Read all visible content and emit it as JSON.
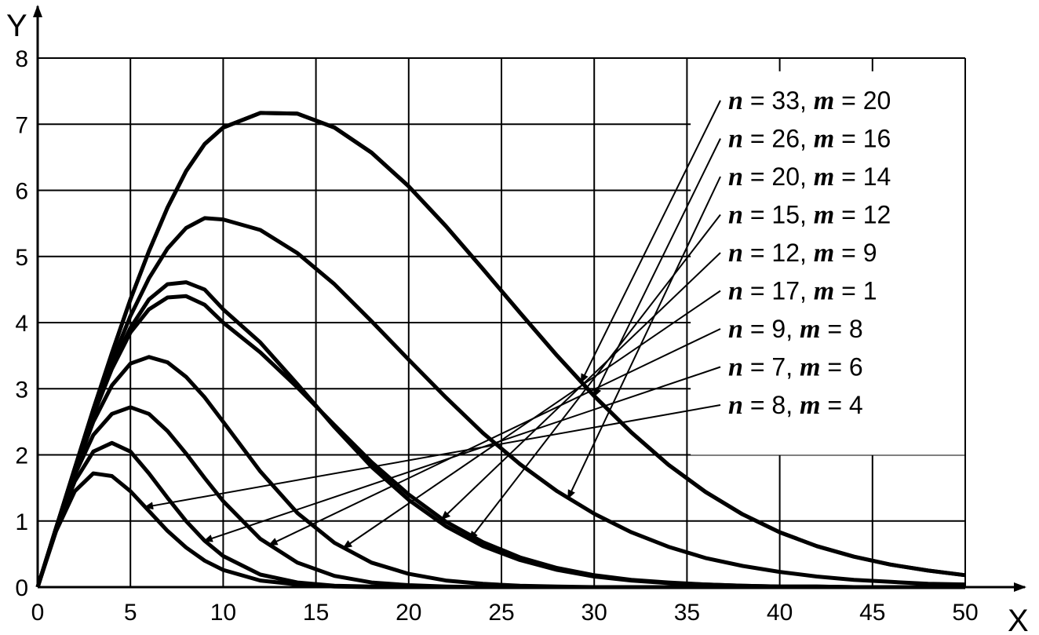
{
  "chart_data": {
    "type": "line",
    "title": "",
    "xlabel": "X",
    "ylabel": "Y",
    "xlim": [
      0,
      50
    ],
    "ylim": [
      0,
      8
    ],
    "xticks": [
      0,
      5,
      10,
      15,
      20,
      25,
      30,
      35,
      40,
      45,
      50
    ],
    "yticks": [
      0,
      1,
      2,
      3,
      4,
      5,
      6,
      7,
      8
    ],
    "grid": true,
    "legend_position": "right",
    "line_color": "#000000",
    "x": [
      0,
      1,
      2,
      3,
      4,
      5,
      6,
      7,
      8,
      9,
      10,
      12,
      14,
      16,
      18,
      20,
      22,
      24,
      26,
      28,
      30,
      32,
      34,
      36,
      38,
      40,
      42,
      44,
      46,
      48,
      50
    ],
    "series": [
      {
        "name": "n = 33, m = 20",
        "values": [
          0,
          0.9,
          1.8,
          2.69,
          3.54,
          4.35,
          5.08,
          5.74,
          6.29,
          6.7,
          6.95,
          7.17,
          7.16,
          6.95,
          6.57,
          6.06,
          5.46,
          4.81,
          4.15,
          3.5,
          2.89,
          2.34,
          1.85,
          1.44,
          1.1,
          0.83,
          0.62,
          0.46,
          0.34,
          0.25,
          0.18
        ],
        "arrow_x": 29.3
      },
      {
        "name": "n = 26, m = 16",
        "values": [
          0,
          0.9,
          1.8,
          2.69,
          3.54,
          4.35,
          5.08,
          5.74,
          6.29,
          6.7,
          6.95,
          7.17,
          7.16,
          6.95,
          6.57,
          6.06,
          5.46,
          4.81,
          4.15,
          3.5,
          2.89,
          2.34,
          1.85,
          1.44,
          1.1,
          0.83,
          0.62,
          0.46,
          0.34,
          0.25,
          0.18
        ],
        "arrow_x": 30.0
      },
      {
        "name": "n = 20, m = 14",
        "values": [
          0,
          0.9,
          1.78,
          2.62,
          3.41,
          4.1,
          4.67,
          5.12,
          5.43,
          5.58,
          5.56,
          5.4,
          5.05,
          4.58,
          4.02,
          3.44,
          2.87,
          2.33,
          1.86,
          1.45,
          1.11,
          0.83,
          0.61,
          0.44,
          0.32,
          0.23,
          0.16,
          0.11,
          0.08,
          0.05,
          0.04
        ],
        "arrow_x": 28.6
      },
      {
        "name": "n = 15, m = 12",
        "values": [
          0,
          0.9,
          1.78,
          2.6,
          3.33,
          3.92,
          4.35,
          4.58,
          4.61,
          4.5,
          4.2,
          3.7,
          3.07,
          2.42,
          1.82,
          1.32,
          0.92,
          0.62,
          0.41,
          0.26,
          0.16,
          0.1,
          0.06,
          0.04,
          0.02,
          0.01,
          0.01,
          0,
          0,
          0,
          0
        ],
        "arrow_x": 23.3
      },
      {
        "name": "n = 12, m = 9",
        "values": [
          0,
          0.9,
          1.78,
          2.6,
          3.3,
          3.85,
          4.2,
          4.38,
          4.4,
          4.27,
          4.0,
          3.55,
          3.02,
          2.45,
          1.89,
          1.4,
          0.99,
          0.68,
          0.45,
          0.29,
          0.18,
          0.11,
          0.07,
          0.04,
          0.02,
          0.01,
          0.01,
          0,
          0,
          0,
          0
        ],
        "arrow_x": 21.8
      },
      {
        "name": "n = 17, m = 1",
        "values": [
          0,
          0.9,
          1.75,
          2.5,
          3.05,
          3.38,
          3.48,
          3.4,
          3.18,
          2.87,
          2.5,
          1.75,
          1.12,
          0.67,
          0.37,
          0.2,
          0.1,
          0.05,
          0.02,
          0.01,
          0,
          0,
          0,
          0,
          0,
          0,
          0,
          0,
          0,
          0,
          0
        ],
        "arrow_x": 16.5
      },
      {
        "name": "n = 9, m = 8",
        "values": [
          0,
          0.9,
          1.7,
          2.3,
          2.62,
          2.72,
          2.62,
          2.36,
          2.02,
          1.65,
          1.3,
          0.73,
          0.37,
          0.17,
          0.07,
          0.03,
          0.01,
          0,
          0,
          0,
          0,
          0,
          0,
          0,
          0,
          0,
          0,
          0,
          0,
          0,
          0
        ],
        "arrow_x": 12.5
      },
      {
        "name": "n = 7, m = 6",
        "values": [
          0,
          0.88,
          1.6,
          2.05,
          2.18,
          2.05,
          1.72,
          1.35,
          1.0,
          0.7,
          0.47,
          0.19,
          0.07,
          0.02,
          0.01,
          0,
          0,
          0,
          0,
          0,
          0,
          0,
          0,
          0,
          0,
          0,
          0,
          0,
          0,
          0,
          0
        ],
        "arrow_x": 9.0
      },
      {
        "name": "n = 8, m = 4",
        "values": [
          0,
          0.85,
          1.45,
          1.72,
          1.68,
          1.45,
          1.15,
          0.85,
          0.6,
          0.4,
          0.26,
          0.1,
          0.04,
          0.01,
          0,
          0,
          0,
          0,
          0,
          0,
          0,
          0,
          0,
          0,
          0,
          0,
          0,
          0,
          0,
          0,
          0
        ],
        "arrow_x": 5.8
      }
    ]
  }
}
